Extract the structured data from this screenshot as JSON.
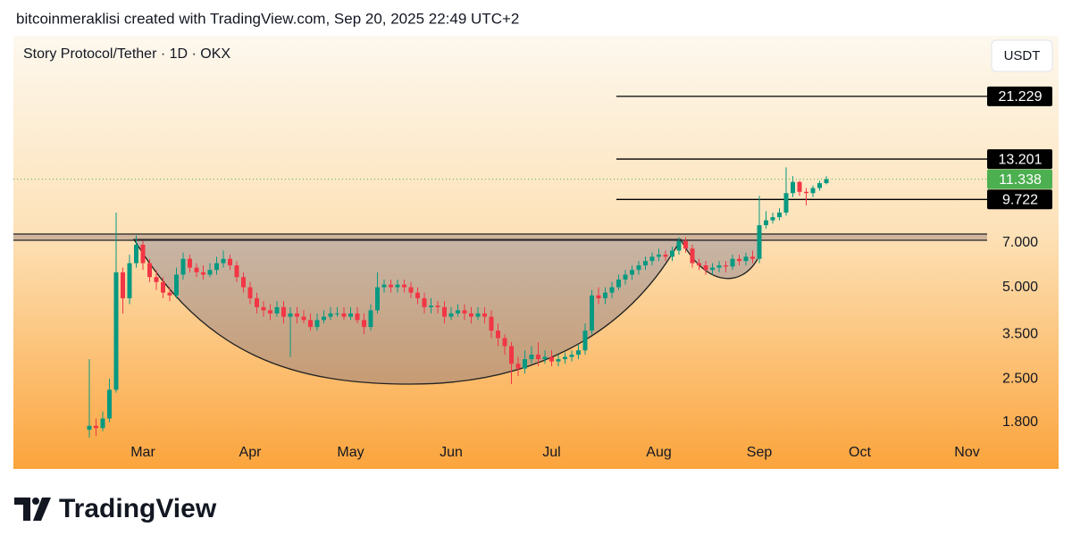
{
  "header": "bitcoinmeraklisi created with TradingView.com, Sep 20, 2025 22:49 UTC+2",
  "brand": "TradingView",
  "chart_data": {
    "type": "candlestick",
    "title": "Story Protocol/Tether · 1D · OKX",
    "currency": "USDT",
    "log_scale": true,
    "grid": false,
    "up_color": "#089981",
    "down_color": "#f23645",
    "level_color": "#000000",
    "last_price_color": "#4caf50",
    "ylim": [
      1.6,
      33.6
    ],
    "yticks": [
      {
        "value": 1.8,
        "label": "1.800"
      },
      {
        "value": 2.5,
        "label": "2.500"
      },
      {
        "value": 3.5,
        "label": "3.500"
      },
      {
        "value": 5,
        "label": "5.000"
      },
      {
        "value": 7,
        "label": "7.000"
      }
    ],
    "levels": [
      21.229,
      13.201,
      9.722
    ],
    "categories": [
      null,
      null,
      null,
      null,
      null,
      null,
      null,
      null,
      "Mar",
      null,
      null,
      null,
      null,
      null,
      null,
      null,
      null,
      null,
      null,
      null,
      null,
      null,
      null,
      null,
      "Apr",
      null,
      null,
      null,
      null,
      null,
      null,
      null,
      null,
      null,
      null,
      null,
      null,
      null,
      null,
      "May",
      null,
      null,
      null,
      null,
      null,
      null,
      null,
      null,
      null,
      null,
      null,
      null,
      null,
      null,
      "Jun",
      null,
      null,
      null,
      null,
      null,
      null,
      null,
      null,
      null,
      null,
      null,
      null,
      null,
      null,
      "Jul",
      null,
      null,
      null,
      null,
      null,
      null,
      null,
      null,
      null,
      null,
      null,
      null,
      null,
      null,
      null,
      "Aug",
      null,
      null,
      null,
      null,
      null,
      null,
      null,
      null,
      null,
      null,
      null,
      null,
      null,
      null,
      "Sep",
      null,
      null,
      null,
      null,
      null,
      null,
      null,
      null,
      null,
      null,
      null,
      null,
      null,
      null,
      "Oct",
      null,
      null,
      null,
      null,
      null,
      null,
      null,
      null,
      null,
      null,
      null,
      null,
      null,
      null,
      null,
      "Nov",
      null,
      null
    ],
    "open": [
      1.7,
      1.75,
      1.72,
      1.85,
      2.3,
      5.6,
      4.6,
      6.0,
      6.9,
      6.0,
      5.4,
      5.2,
      4.8,
      4.7,
      5.5,
      6.2,
      5.8,
      5.6,
      5.5,
      5.7,
      6.0,
      6.2,
      5.9,
      5.4,
      5.0,
      4.6,
      4.3,
      4.2,
      4.1,
      4.3,
      4.0,
      4.1,
      4.0,
      3.9,
      3.7,
      3.9,
      4.0,
      4.1,
      4.1,
      4.0,
      4.1,
      3.9,
      3.7,
      4.2,
      5.0,
      5.1,
      5.0,
      5.1,
      5.0,
      4.8,
      4.6,
      4.3,
      4.35,
      4.3,
      4.0,
      4.1,
      4.2,
      4.1,
      4.0,
      4.1,
      4.0,
      3.6,
      3.4,
      3.2,
      2.8,
      2.7,
      2.9,
      3.0,
      2.9,
      2.95,
      2.85,
      2.9,
      2.95,
      3.0,
      3.1,
      3.6,
      4.7,
      4.6,
      4.8,
      5.0,
      5.3,
      5.5,
      5.7,
      5.9,
      6.1,
      6.3,
      6.4,
      6.3,
      6.6,
      7.1,
      6.7,
      6.0,
      5.9,
      5.7,
      5.8,
      5.9,
      5.85,
      6.2,
      6.1,
      6.3,
      6.2,
      8.0,
      8.3,
      8.5,
      8.8,
      10.2,
      11.1,
      10.3,
      10.2,
      10.6,
      11.0,
      null,
      null,
      null,
      null,
      null,
      null,
      null,
      null,
      null,
      null,
      null,
      null,
      null,
      null,
      null,
      null,
      null,
      null,
      null,
      null,
      null,
      null,
      null
    ],
    "high": [
      2.9,
      1.85,
      1.95,
      2.5,
      8.8,
      5.8,
      6.4,
      7.4,
      7.1,
      6.2,
      5.7,
      5.4,
      5.0,
      5.8,
      6.5,
      6.4,
      6.0,
      5.9,
      6.0,
      6.3,
      6.6,
      6.4,
      6.1,
      5.6,
      5.2,
      4.8,
      4.5,
      4.4,
      4.5,
      4.5,
      4.3,
      4.3,
      4.2,
      4.1,
      4.1,
      4.2,
      4.3,
      4.3,
      4.3,
      4.3,
      4.3,
      4.1,
      4.4,
      5.6,
      5.3,
      5.3,
      5.3,
      5.3,
      5.2,
      5.0,
      4.8,
      4.6,
      4.5,
      4.5,
      4.3,
      4.4,
      4.4,
      4.3,
      4.3,
      4.3,
      4.2,
      3.8,
      3.5,
      3.3,
      2.95,
      3.1,
      3.2,
      3.3,
      3.1,
      3.1,
      3.0,
      3.05,
      3.1,
      3.25,
      3.8,
      4.9,
      5.0,
      5.0,
      5.2,
      5.5,
      5.7,
      5.9,
      6.1,
      6.3,
      6.5,
      6.7,
      6.6,
      6.8,
      7.3,
      7.3,
      6.9,
      6.2,
      6.1,
      6.0,
      6.1,
      6.1,
      6.4,
      6.4,
      6.5,
      6.6,
      10.0,
      8.9,
      8.8,
      9.1,
      12.4,
      11.6,
      11.2,
      10.6,
      10.8,
      11.2,
      11.6,
      null,
      null,
      null,
      null,
      null,
      null,
      null,
      null,
      null,
      null,
      null,
      null,
      null,
      null,
      null,
      null,
      null,
      null,
      null,
      null,
      null,
      null,
      null
    ],
    "low": [
      1.6,
      1.62,
      1.68,
      1.8,
      2.25,
      4.1,
      4.4,
      5.8,
      5.7,
      5.2,
      4.9,
      4.6,
      4.5,
      4.6,
      5.3,
      5.6,
      5.4,
      5.3,
      5.4,
      5.5,
      5.8,
      5.7,
      5.2,
      4.8,
      4.4,
      4.1,
      4.0,
      3.9,
      4.0,
      3.8,
      2.95,
      3.8,
      3.8,
      3.6,
      3.6,
      3.8,
      3.9,
      4.0,
      3.9,
      3.9,
      3.8,
      3.5,
      3.6,
      4.1,
      4.8,
      4.8,
      4.8,
      4.8,
      4.6,
      4.4,
      4.1,
      4.1,
      4.1,
      3.8,
      3.9,
      4.0,
      3.9,
      3.8,
      3.9,
      3.8,
      3.4,
      3.2,
      3.0,
      2.4,
      2.55,
      2.6,
      2.8,
      2.75,
      2.8,
      2.75,
      2.75,
      2.8,
      2.85,
      2.9,
      3.0,
      3.5,
      4.4,
      4.4,
      4.6,
      4.9,
      5.1,
      5.3,
      5.5,
      5.7,
      5.9,
      6.1,
      6.1,
      6.1,
      6.4,
      6.5,
      5.8,
      5.7,
      5.5,
      5.5,
      5.6,
      5.6,
      5.7,
      5.9,
      5.9,
      6.0,
      6.0,
      7.8,
      8.1,
      8.3,
      8.6,
      9.9,
      10.0,
      9.3,
      9.9,
      10.4,
      10.9,
      null,
      null,
      null,
      null,
      null,
      null,
      null,
      null,
      null,
      null,
      null,
      null,
      null,
      null,
      null,
      null,
      null,
      null,
      null,
      null,
      null,
      null,
      null
    ],
    "close": [
      1.75,
      1.72,
      1.85,
      2.3,
      5.6,
      4.6,
      6.0,
      6.9,
      6.0,
      5.4,
      5.2,
      4.8,
      4.7,
      5.5,
      6.2,
      5.8,
      5.6,
      5.5,
      5.7,
      6.0,
      6.2,
      5.9,
      5.4,
      5.0,
      4.6,
      4.3,
      4.2,
      4.1,
      4.3,
      4.0,
      4.1,
      4.0,
      3.9,
      3.7,
      3.9,
      4.0,
      4.1,
      4.1,
      4.0,
      4.1,
      3.9,
      3.7,
      4.2,
      5.0,
      5.1,
      5.0,
      5.1,
      5.0,
      4.8,
      4.6,
      4.3,
      4.35,
      4.3,
      4.0,
      4.1,
      4.2,
      4.1,
      4.0,
      4.1,
      4.0,
      3.6,
      3.4,
      3.2,
      2.8,
      2.7,
      2.9,
      3.0,
      2.9,
      2.95,
      2.85,
      2.9,
      2.95,
      3.0,
      3.1,
      3.6,
      4.7,
      4.6,
      4.8,
      5.0,
      5.3,
      5.5,
      5.7,
      5.9,
      6.1,
      6.3,
      6.4,
      6.3,
      6.6,
      7.1,
      6.7,
      6.0,
      5.9,
      5.7,
      5.8,
      5.9,
      5.85,
      6.2,
      6.1,
      6.3,
      6.2,
      8.0,
      8.3,
      8.5,
      8.8,
      10.2,
      11.1,
      10.3,
      10.2,
      10.6,
      11.0,
      11.338,
      null,
      null,
      null,
      null,
      null,
      null,
      null,
      null,
      null,
      null,
      null,
      null,
      null,
      null,
      null,
      null,
      null,
      null,
      null,
      null,
      null,
      null,
      null
    ]
  }
}
